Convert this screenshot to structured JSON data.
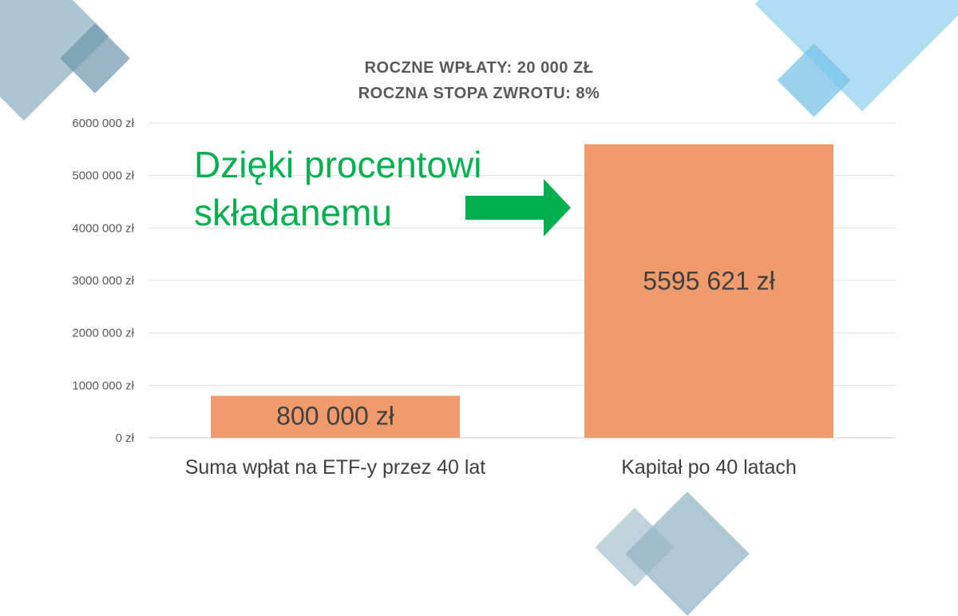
{
  "chart_data": {
    "type": "bar",
    "title_lines": [
      "ROCZNE WPŁATY: 20 000 ZŁ",
      "ROCZNA STOPA ZWROTU: 8%"
    ],
    "categories": [
      "Suma wpłat na ETF-y przez 40 lat",
      "Kapitał po 40 latach"
    ],
    "values": [
      800000,
      5595621
    ],
    "data_labels": [
      "800 000 zł",
      "5595 621 zł"
    ],
    "ylim": [
      0,
      6000000
    ],
    "y_ticks": [
      0,
      1000000,
      2000000,
      3000000,
      4000000,
      5000000,
      6000000
    ],
    "y_tick_labels": [
      "0 zł",
      "1000 000 zł",
      "2000 000 zł",
      "3000 000 zł",
      "4000 000 zł",
      "5000 000 zł",
      "6000 000 zł"
    ],
    "grid": true,
    "legend": "none",
    "bar_color": "#f09b6c",
    "grid_color": "#e0e0e0"
  },
  "annotation": {
    "text_line1": "Dzięki procentowi",
    "text_line2": "składanemu",
    "color": "#00b050",
    "arrow_icon": "right-arrow-icon"
  },
  "theme": {
    "deco_blue_gray": "#9fbccb",
    "deco_light_blue": "#9ed6ef"
  }
}
